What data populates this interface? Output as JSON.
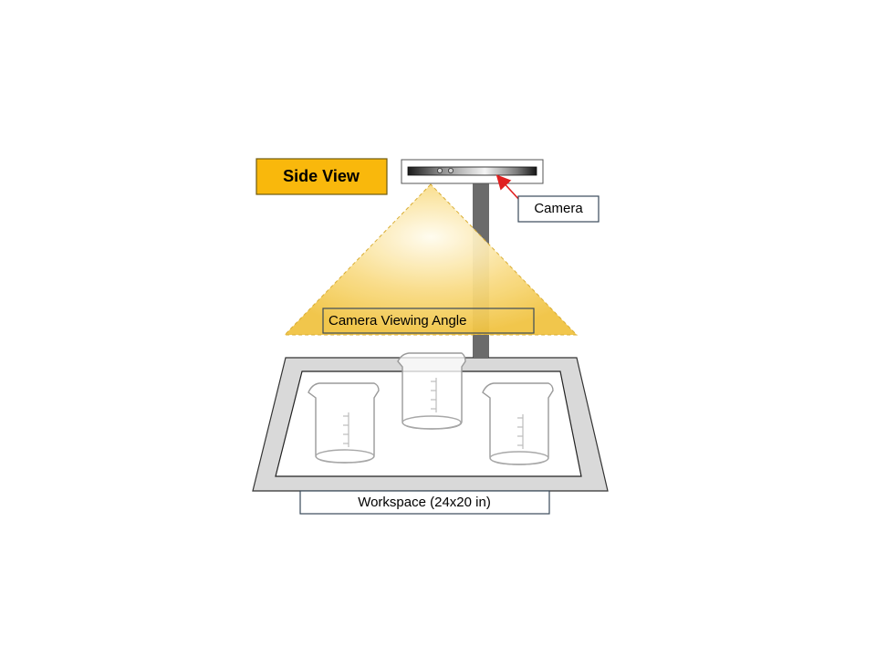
{
  "diagram": {
    "title": "Side View",
    "camera_label": "Camera",
    "viewing_angle_label": "Camera Viewing Angle",
    "workspace_label": "Workspace (24x20 in)"
  },
  "colors": {
    "title_fill": "#f9b80c",
    "cone_center": "#fffbe9",
    "cone_edge": "#f2c84e",
    "pole": "#6b6b6b",
    "arrow": "#e02020",
    "tray": "#d9d9d9"
  }
}
